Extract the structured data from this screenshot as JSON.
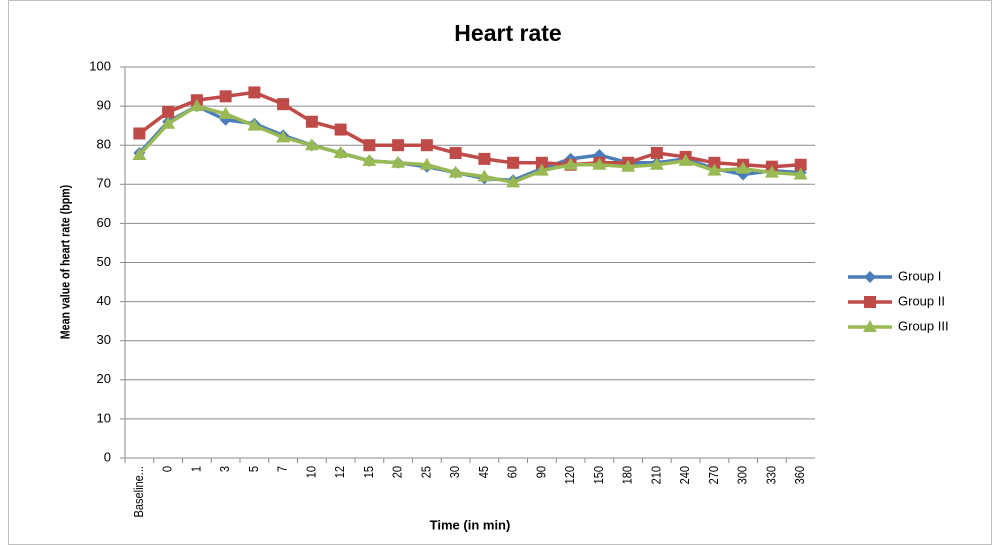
{
  "chart_data": {
    "type": "line",
    "title": "Heart rate",
    "x_label": "Time (in min)",
    "y_label": "Mean value of heart rate (bpm)",
    "categories": [
      "Baseline...",
      "0",
      "1",
      "3",
      "5",
      "7",
      "10",
      "12",
      "15",
      "20",
      "25",
      "30",
      "45",
      "60",
      "90",
      "120",
      "150",
      "180",
      "210",
      "240",
      "270",
      "300",
      "330",
      "360"
    ],
    "series": [
      {
        "name": "Group I",
        "color": "#4a7ebb",
        "marker": "diamond",
        "values": [
          78,
          86,
          90,
          86.5,
          85.5,
          82.5,
          80,
          78,
          76,
          75.5,
          74.5,
          73,
          71.5,
          71,
          74,
          76.5,
          77.5,
          75.5,
          75.5,
          76.5,
          74,
          72.5,
          73.5,
          73
        ]
      },
      {
        "name": "Group II",
        "color": "#be4b48",
        "marker": "square",
        "values": [
          83,
          88.5,
          91.5,
          92.5,
          93.5,
          90.5,
          86,
          84,
          80,
          80,
          80,
          78,
          76.5,
          75.5,
          75.5,
          75,
          75.5,
          75.5,
          78,
          77,
          75.5,
          75,
          74.5,
          75
        ]
      },
      {
        "name": "Group III",
        "color": "#98b954",
        "marker": "triangle",
        "values": [
          77.5,
          85.5,
          90,
          88,
          85,
          82,
          80,
          78,
          76,
          75.5,
          75,
          73,
          72,
          70.5,
          73.5,
          75,
          75,
          74.5,
          75,
          76,
          73.5,
          74,
          73,
          72.5
        ]
      }
    ],
    "ylim": [
      0,
      100
    ],
    "yticks": [
      0,
      10,
      20,
      30,
      40,
      50,
      60,
      70,
      80,
      90,
      100
    ],
    "grid": true,
    "legend": "right"
  }
}
